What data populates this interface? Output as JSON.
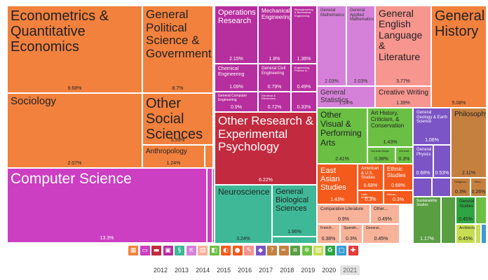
{
  "chart_data": {
    "type": "treemap",
    "cells": [
      {
        "label": "Econometrics & Quantitative Economics",
        "value": "9.68%",
        "color": "#f2813e",
        "textcolor": "#222222",
        "fs": 20
      },
      {
        "label": "General Political Science & Government",
        "value": "8.7%",
        "color": "#f2813e",
        "textcolor": "#222222",
        "fs": 17
      },
      {
        "label": "Other Social Sciences",
        "value": "5.99%",
        "color": "#f2813e",
        "textcolor": "#222222",
        "fs": 20
      },
      {
        "label": "Sociology",
        "value": "2.07%",
        "color": "#f2813e",
        "textcolor": "#222222",
        "fs": 15
      },
      {
        "label": "Anthropology",
        "value": "1.24%",
        "color": "#f2813e",
        "textcolor": "#222222",
        "fs": 10
      },
      {
        "label": "",
        "value": "",
        "color": "#f2813e",
        "textcolor": "#222222",
        "fs": 8
      },
      {
        "label": "Computer Science",
        "value": "13.3%",
        "color": "#cc3ec2",
        "textcolor": "#ffffff",
        "fs": 21
      },
      {
        "label": "",
        "value": "",
        "color": "#cc3ec2",
        "textcolor": "#ffffff",
        "fs": 8
      },
      {
        "label": "",
        "value": "",
        "color": "#cc3ec2",
        "textcolor": "#ffffff",
        "fs": 8
      },
      {
        "label": "Operations Research",
        "value": "2.15%",
        "color": "#b72e9e",
        "textcolor": "#ffffff",
        "fs": 11
      },
      {
        "label": "Mechanical Engineering",
        "value": "1.8%",
        "color": "#b72e9e",
        "textcolor": "#ffffff",
        "fs": 8
      },
      {
        "label": "Bioengineering & Biomedical Engineering",
        "value": "1.36%",
        "color": "#b72e9e",
        "textcolor": "#ffffff",
        "fs": 4
      },
      {
        "label": "Chemical Engineering",
        "value": "1.09%",
        "color": "#b72e9e",
        "textcolor": "#ffffff",
        "fs": 7
      },
      {
        "label": "General Civil Engineering",
        "value": "0.79%",
        "color": "#b72e9e",
        "textcolor": "#ffffff",
        "fs": 6
      },
      {
        "label": "Engineering Physics &...",
        "value": "0.49%",
        "color": "#b72e9e",
        "textcolor": "#ffffff",
        "fs": 4
      },
      {
        "label": "General Computer Engineering",
        "value": "0.9%",
        "color": "#b72e9e",
        "textcolor": "#ffffff",
        "fs": 5
      },
      {
        "label": "Electrical & Electronics...",
        "value": "0.72%",
        "color": "#b72e9e",
        "textcolor": "#ffffff",
        "fs": 4
      },
      {
        "label": "",
        "value": "0.33%",
        "color": "#b72e9e",
        "textcolor": "#ffffff",
        "fs": 4
      },
      {
        "label": "General Mathematics",
        "value": "2.03%",
        "color": "#d681d9",
        "textcolor": "#333333",
        "fs": 6
      },
      {
        "label": "General Applied Mathematics",
        "value": "2.03%",
        "color": "#d681d9",
        "textcolor": "#333333",
        "fs": 6
      },
      {
        "label": "General Statistics",
        "value": "1.24%",
        "color": "#d681d9",
        "textcolor": "#333333",
        "fs": 10
      },
      {
        "label": "General English Language & Literature",
        "value": "3.77%",
        "color": "#f7958f",
        "textcolor": "#222222",
        "fs": 14
      },
      {
        "label": "Creative Writing",
        "value": "1.39%",
        "color": "#f7958f",
        "textcolor": "#222222",
        "fs": 10
      },
      {
        "label": "General History",
        "value": "5.08%",
        "color": "#f2813e",
        "textcolor": "#222222",
        "fs": 20
      },
      {
        "label": "Other Research & Experimental Psychology",
        "value": "6.22%",
        "color": "#c22a3f",
        "textcolor": "#ffffff",
        "fs": 17
      },
      {
        "label": "Neuroscience",
        "value": "3.24%",
        "color": "#3eb897",
        "textcolor": "#222222",
        "fs": 12
      },
      {
        "label": "General Biological Sciences",
        "value": "1.96%",
        "color": "#3eb897",
        "textcolor": "#222222",
        "fs": 11
      },
      {
        "label": "",
        "value": "",
        "color": "#3eb897",
        "textcolor": "#222222",
        "fs": 8
      },
      {
        "label": "Other Visual & Performing Arts",
        "value": "2.41%",
        "color": "#6bc044",
        "textcolor": "#222222",
        "fs": 12
      },
      {
        "label": "Art History, Criticism, & Conservation",
        "value": "1.43%",
        "color": "#6bc044",
        "textcolor": "#222222",
        "fs": 8
      },
      {
        "label": "General Music",
        "value": "0.38%",
        "color": "#6bc044",
        "textcolor": "#222222",
        "fs": 4
      },
      {
        "label": "General...",
        "value": "0.3%",
        "color": "#6bc044",
        "textcolor": "#222222",
        "fs": 4
      },
      {
        "label": "East Asian Studies",
        "value": "1.43%",
        "color": "#f35a1c",
        "textcolor": "#ffffff",
        "fs": 11
      },
      {
        "label": "American & U.S. Studies",
        "value": "0.68%",
        "color": "#f35a1c",
        "textcolor": "#ffffff",
        "fs": 6
      },
      {
        "label": "Ethnic Studies",
        "value": "0.68%",
        "color": "#f35a1c",
        "textcolor": "#ffffff",
        "fs": 8
      },
      {
        "label": "Latin American...",
        "value": "0.3%",
        "color": "#f35a1c",
        "textcolor": "#ffffff",
        "fs": 4
      },
      {
        "label": "African...",
        "value": "0.3%",
        "color": "#f35a1c",
        "textcolor": "#ffffff",
        "fs": 4
      },
      {
        "label": "Comparative Literature",
        "value": "0.9%",
        "color": "#f7b29a",
        "textcolor": "#222222",
        "fs": 6
      },
      {
        "label": "Other...",
        "value": "0.49%",
        "color": "#f7b29a",
        "textcolor": "#222222",
        "fs": 6
      },
      {
        "label": "French...",
        "value": "0.38%",
        "color": "#f7b29a",
        "textcolor": "#222222",
        "fs": 5
      },
      {
        "label": "Spanish...",
        "value": "0.3%",
        "color": "#f7b29a",
        "textcolor": "#222222",
        "fs": 5
      },
      {
        "label": "General...",
        "value": "0.45%",
        "color": "#f7b29a",
        "textcolor": "#222222",
        "fs": 5
      },
      {
        "label": "General Geology & Earth Science",
        "value": "1.06%",
        "color": "#7b54c5",
        "textcolor": "#ffffff",
        "fs": 6
      },
      {
        "label": "General Physics",
        "value": "0.68%",
        "color": "#7b54c5",
        "textcolor": "#ffffff",
        "fs": 6
      },
      {
        "label": "",
        "value": "0.53%",
        "color": "#7b54c5",
        "textcolor": "#ffffff",
        "fs": 4
      },
      {
        "label": "Philosophy",
        "value": "2.11%",
        "color": "#c58040",
        "textcolor": "#222222",
        "fs": 10
      },
      {
        "label": "Religious...",
        "value": "0.3%",
        "color": "#c58040",
        "textcolor": "#222222",
        "fs": 4
      },
      {
        "label": "Other...",
        "value": "0.26%",
        "color": "#c58040",
        "textcolor": "#222222",
        "fs": 4
      },
      {
        "label": "Sustainability Studies",
        "value": "1.17%",
        "color": "#5a9e42",
        "textcolor": "#ffffff",
        "fs": 5
      },
      {
        "label": "General Studies",
        "value": "0.45%",
        "color": "#2ea542",
        "textcolor": "#222222",
        "fs": 6
      },
      {
        "label": "Architecture",
        "value": "0.45%",
        "color": "#c7de52",
        "textcolor": "#222222",
        "fs": 5
      }
    ]
  },
  "icons": [
    {
      "name": "business-icon",
      "glyph": "▦",
      "color": "#f2813e"
    },
    {
      "name": "computer-icon",
      "glyph": "▭",
      "color": "#cc3ec2"
    },
    {
      "name": "communications-icon",
      "glyph": "▬",
      "color": "#c22a3f"
    },
    {
      "name": "engineering-icon",
      "glyph": "▣",
      "color": "#b72e9e"
    },
    {
      "name": "biology-icon",
      "glyph": "§",
      "color": "#3eb897"
    },
    {
      "name": "math-icon",
      "glyph": "π",
      "color": "#d681d9"
    },
    {
      "name": "education-icon",
      "glyph": "▤",
      "color": "#f7b29a"
    },
    {
      "name": "arts-icon",
      "glyph": "◧",
      "color": "#6bc044"
    },
    {
      "name": "psychology-icon",
      "glyph": "◐",
      "color": "#f35a1c"
    },
    {
      "name": "area-studies-icon",
      "glyph": "●",
      "color": "#f35a1c"
    },
    {
      "name": "english-icon",
      "glyph": "✎",
      "color": "#f7958f"
    },
    {
      "name": "science-icon",
      "glyph": "◆",
      "color": "#7b54c5"
    },
    {
      "name": "philosophy-icon",
      "glyph": "?",
      "color": "#c58040"
    },
    {
      "name": "history-icon",
      "glyph": "═",
      "color": "#c58040"
    },
    {
      "name": "environment-icon",
      "glyph": "≡",
      "color": "#5a9e42"
    },
    {
      "name": "sustainability-icon",
      "glyph": "✲",
      "color": "#6bc044"
    },
    {
      "name": "interdisciplinary-icon",
      "glyph": "▧",
      "color": "#c7de52"
    },
    {
      "name": "recycling-icon",
      "glyph": "♻",
      "color": "#2ea542"
    },
    {
      "name": "architecture-icon",
      "glyph": "▢",
      "color": "#3b9bd6"
    },
    {
      "name": "health-icon",
      "glyph": "✚",
      "color": "#e23b3b"
    }
  ],
  "years": [
    "2012",
    "2013",
    "2014",
    "2015",
    "2016",
    "2017",
    "2018",
    "2019",
    "2020",
    "2021"
  ],
  "selected_year": "2021"
}
